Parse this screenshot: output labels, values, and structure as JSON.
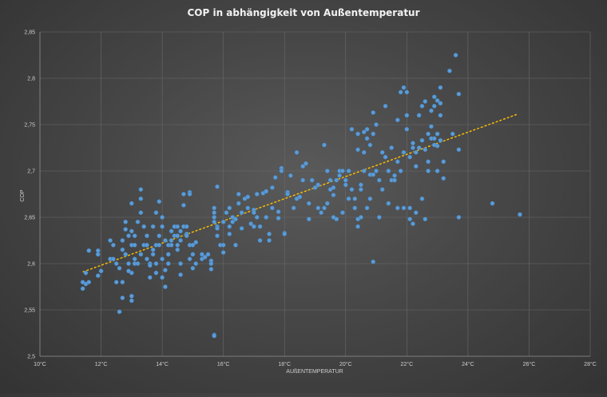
{
  "chart_data": {
    "type": "scatter",
    "title": "COP in abhängigkeit von Außentemperatur",
    "xlabel": "AUßENTEMPERATUR",
    "ylabel": "COP",
    "xlim": [
      10,
      28
    ],
    "ylim": [
      2.5,
      2.85
    ],
    "x_ticks": [
      10,
      12,
      14,
      16,
      18,
      20,
      22,
      24,
      26,
      28
    ],
    "x_tick_labels": [
      "10°C",
      "12°C",
      "14°C",
      "16°C",
      "18°C",
      "20°C",
      "22°C",
      "24°C",
      "26°C",
      "28°C"
    ],
    "y_ticks": [
      2.5,
      2.55,
      2.6,
      2.65,
      2.7,
      2.75,
      2.8,
      2.85
    ],
    "y_tick_labels": [
      "2,5",
      "2,55",
      "2,6",
      "2,65",
      "2,7",
      "2,75",
      "2,8",
      "2,85"
    ],
    "grid": true,
    "legend": "none",
    "colors": {
      "points": "#5b9bd5",
      "trendline": "#ffc000"
    },
    "trendline": {
      "type": "linear",
      "x": [
        11.4,
        25.6
      ],
      "y": [
        2.591,
        2.761
      ]
    },
    "series": [
      {
        "points": [
          [
            11.4,
            2.58
          ],
          [
            11.4,
            2.573
          ],
          [
            11.5,
            2.578
          ],
          [
            11.6,
            2.58
          ],
          [
            11.6,
            2.614
          ],
          [
            11.5,
            2.59
          ],
          [
            11.9,
            2.587
          ],
          [
            12.0,
            2.592
          ],
          [
            11.9,
            2.61
          ],
          [
            11.9,
            2.614
          ],
          [
            12.3,
            2.605
          ],
          [
            12.3,
            2.625
          ],
          [
            12.4,
            2.605
          ],
          [
            12.4,
            2.62
          ],
          [
            12.5,
            2.6
          ],
          [
            12.5,
            2.58
          ],
          [
            12.6,
            2.595
          ],
          [
            12.6,
            2.548
          ],
          [
            12.7,
            2.563
          ],
          [
            12.7,
            2.58
          ],
          [
            12.7,
            2.615
          ],
          [
            12.7,
            2.625
          ],
          [
            12.8,
            2.645
          ],
          [
            12.8,
            2.637
          ],
          [
            12.8,
            2.61
          ],
          [
            12.9,
            2.63
          ],
          [
            12.9,
            2.6
          ],
          [
            12.9,
            2.592
          ],
          [
            13.0,
            2.62
          ],
          [
            13.0,
            2.635
          ],
          [
            13.0,
            2.56
          ],
          [
            13.0,
            2.565
          ],
          [
            13.0,
            2.59
          ],
          [
            13.0,
            2.665
          ],
          [
            13.1,
            2.605
          ],
          [
            13.1,
            2.62
          ],
          [
            13.1,
            2.6
          ],
          [
            13.1,
            2.63
          ],
          [
            13.2,
            2.645
          ],
          [
            13.2,
            2.6
          ],
          [
            13.3,
            2.655
          ],
          [
            13.3,
            2.67
          ],
          [
            13.3,
            2.68
          ],
          [
            13.3,
            2.61
          ],
          [
            13.4,
            2.62
          ],
          [
            13.4,
            2.64
          ],
          [
            13.5,
            2.62
          ],
          [
            13.5,
            2.63
          ],
          [
            13.5,
            2.605
          ],
          [
            13.6,
            2.585
          ],
          [
            13.6,
            2.6
          ],
          [
            13.6,
            2.598
          ],
          [
            13.7,
            2.64
          ],
          [
            13.7,
            2.615
          ],
          [
            13.7,
            2.61
          ],
          [
            13.8,
            2.62
          ],
          [
            13.8,
            2.655
          ],
          [
            13.8,
            2.6
          ],
          [
            13.8,
            2.59
          ],
          [
            13.9,
            2.667
          ],
          [
            13.9,
            2.62
          ],
          [
            13.9,
            2.63
          ],
          [
            14.0,
            2.585
          ],
          [
            14.0,
            2.64
          ],
          [
            14.0,
            2.65
          ],
          [
            14.0,
            2.605
          ],
          [
            14.1,
            2.625
          ],
          [
            14.1,
            2.593
          ],
          [
            14.1,
            2.575
          ],
          [
            14.2,
            2.61
          ],
          [
            14.2,
            2.62
          ],
          [
            14.2,
            2.6
          ],
          [
            14.3,
            2.625
          ],
          [
            14.3,
            2.635
          ],
          [
            14.3,
            2.62
          ],
          [
            14.4,
            2.63
          ],
          [
            14.4,
            2.64
          ],
          [
            14.5,
            2.63
          ],
          [
            14.5,
            2.64
          ],
          [
            14.5,
            2.62
          ],
          [
            14.5,
            2.615
          ],
          [
            14.6,
            2.6
          ],
          [
            14.6,
            2.635
          ],
          [
            14.6,
            2.588
          ],
          [
            14.6,
            2.625
          ],
          [
            14.7,
            2.64
          ],
          [
            14.7,
            2.675
          ],
          [
            14.7,
            2.663
          ],
          [
            14.8,
            2.64
          ],
          [
            14.8,
            2.632
          ],
          [
            14.8,
            2.63
          ],
          [
            14.9,
            2.677
          ],
          [
            14.9,
            2.675
          ],
          [
            14.9,
            2.62
          ],
          [
            14.9,
            2.605
          ],
          [
            15.0,
            2.595
          ],
          [
            15.0,
            2.61
          ],
          [
            15.0,
            2.62
          ],
          [
            15.1,
            2.6
          ],
          [
            15.1,
            2.623
          ],
          [
            15.3,
            2.61
          ],
          [
            15.3,
            2.605
          ],
          [
            15.4,
            2.607
          ],
          [
            15.5,
            2.61
          ],
          [
            15.6,
            2.603
          ],
          [
            15.6,
            2.6
          ],
          [
            15.6,
            2.594
          ],
          [
            15.7,
            2.523
          ],
          [
            15.7,
            2.522
          ],
          [
            15.7,
            2.65
          ],
          [
            15.7,
            2.655
          ],
          [
            15.7,
            2.645
          ],
          [
            15.7,
            2.66
          ],
          [
            15.8,
            2.683
          ],
          [
            15.8,
            2.64
          ],
          [
            15.8,
            2.638
          ],
          [
            15.8,
            2.63
          ],
          [
            15.9,
            2.62
          ],
          [
            16.0,
            2.62
          ],
          [
            16.0,
            2.612
          ],
          [
            16.0,
            2.645
          ],
          [
            16.1,
            2.655
          ],
          [
            16.2,
            2.632
          ],
          [
            16.2,
            2.64
          ],
          [
            16.2,
            2.66
          ],
          [
            16.3,
            2.65
          ],
          [
            16.3,
            2.645
          ],
          [
            16.4,
            2.648
          ],
          [
            16.4,
            2.62
          ],
          [
            16.5,
            2.665
          ],
          [
            16.5,
            2.675
          ],
          [
            16.6,
            2.655
          ],
          [
            16.6,
            2.638
          ],
          [
            16.7,
            2.67
          ],
          [
            16.8,
            2.672
          ],
          [
            16.8,
            2.66
          ],
          [
            16.9,
            2.643
          ],
          [
            17.0,
            2.658
          ],
          [
            17.0,
            2.655
          ],
          [
            17.0,
            2.64
          ],
          [
            17.1,
            2.675
          ],
          [
            17.1,
            2.65
          ],
          [
            17.2,
            2.64
          ],
          [
            17.2,
            2.625
          ],
          [
            17.3,
            2.676
          ],
          [
            17.4,
            2.678
          ],
          [
            17.4,
            2.65
          ],
          [
            17.5,
            2.632
          ],
          [
            17.5,
            2.625
          ],
          [
            17.6,
            2.682
          ],
          [
            17.6,
            2.66
          ],
          [
            17.7,
            2.693
          ],
          [
            17.8,
            2.656
          ],
          [
            17.8,
            2.649
          ],
          [
            17.9,
            2.703
          ],
          [
            17.9,
            2.7
          ],
          [
            18.0,
            2.633
          ],
          [
            18.0,
            2.632
          ],
          [
            18.1,
            2.677
          ],
          [
            18.1,
            2.675
          ],
          [
            18.2,
            2.695
          ],
          [
            18.3,
            2.66
          ],
          [
            18.4,
            2.67
          ],
          [
            18.4,
            2.72
          ],
          [
            18.5,
            2.672
          ],
          [
            18.6,
            2.69
          ],
          [
            18.6,
            2.705
          ],
          [
            18.7,
            2.708
          ],
          [
            18.8,
            2.648
          ],
          [
            18.8,
            2.665
          ],
          [
            18.9,
            2.69
          ],
          [
            19.0,
            2.682
          ],
          [
            19.1,
            2.685
          ],
          [
            19.1,
            2.66
          ],
          [
            19.2,
            2.655
          ],
          [
            19.3,
            2.66
          ],
          [
            19.3,
            2.728
          ],
          [
            19.4,
            2.7
          ],
          [
            19.4,
            2.665
          ],
          [
            19.5,
            2.68
          ],
          [
            19.5,
            2.69
          ],
          [
            19.6,
            2.682
          ],
          [
            19.6,
            2.674
          ],
          [
            19.6,
            2.65
          ],
          [
            19.7,
            2.69
          ],
          [
            19.7,
            2.648
          ],
          [
            19.8,
            2.7
          ],
          [
            19.8,
            2.695
          ],
          [
            19.9,
            2.7
          ],
          [
            19.9,
            2.655
          ],
          [
            20.0,
            2.685
          ],
          [
            20.0,
            2.69
          ],
          [
            20.1,
            2.67
          ],
          [
            20.1,
            2.7
          ],
          [
            20.2,
            2.745
          ],
          [
            20.2,
            2.68
          ],
          [
            20.3,
            2.67
          ],
          [
            20.3,
            2.66
          ],
          [
            20.4,
            2.74
          ],
          [
            20.4,
            2.723
          ],
          [
            20.4,
            2.648
          ],
          [
            20.4,
            2.64
          ],
          [
            20.5,
            2.65
          ],
          [
            20.5,
            2.68
          ],
          [
            20.5,
            2.685
          ],
          [
            20.6,
            2.742
          ],
          [
            20.6,
            2.72
          ],
          [
            20.6,
            2.7
          ],
          [
            20.7,
            2.66
          ],
          [
            20.7,
            2.745
          ],
          [
            20.7,
            2.735
          ],
          [
            20.8,
            2.728
          ],
          [
            20.8,
            2.696
          ],
          [
            20.8,
            2.67
          ],
          [
            20.9,
            2.74
          ],
          [
            20.9,
            2.763
          ],
          [
            20.9,
            2.696
          ],
          [
            20.9,
            2.602
          ],
          [
            21.0,
            2.75
          ],
          [
            21.0,
            2.7
          ],
          [
            21.1,
            2.69
          ],
          [
            21.1,
            2.65
          ],
          [
            21.2,
            2.72
          ],
          [
            21.2,
            2.68
          ],
          [
            21.3,
            2.77
          ],
          [
            21.3,
            2.715
          ],
          [
            21.4,
            2.7
          ],
          [
            21.4,
            2.665
          ],
          [
            21.5,
            2.725
          ],
          [
            21.5,
            2.69
          ],
          [
            21.6,
            2.695
          ],
          [
            21.6,
            2.69
          ],
          [
            21.7,
            2.755
          ],
          [
            21.7,
            2.71
          ],
          [
            21.7,
            2.66
          ],
          [
            21.8,
            2.785
          ],
          [
            21.8,
            2.7
          ],
          [
            21.9,
            2.79
          ],
          [
            21.9,
            2.72
          ],
          [
            21.9,
            2.66
          ],
          [
            22.0,
            2.785
          ],
          [
            22.0,
            2.76
          ],
          [
            22.0,
            2.745
          ],
          [
            22.1,
            2.648
          ],
          [
            22.1,
            2.715
          ],
          [
            22.1,
            2.66
          ],
          [
            22.2,
            2.725
          ],
          [
            22.2,
            2.73
          ],
          [
            22.2,
            2.643
          ],
          [
            22.3,
            2.72
          ],
          [
            22.3,
            2.705
          ],
          [
            22.3,
            2.655
          ],
          [
            22.4,
            2.76
          ],
          [
            22.4,
            2.725
          ],
          [
            22.5,
            2.77
          ],
          [
            22.5,
            2.733
          ],
          [
            22.5,
            2.67
          ],
          [
            22.6,
            2.775
          ],
          [
            22.6,
            2.723
          ],
          [
            22.6,
            2.648
          ],
          [
            22.7,
            2.74
          ],
          [
            22.7,
            2.71
          ],
          [
            22.7,
            2.7
          ],
          [
            22.8,
            2.765
          ],
          [
            22.8,
            2.748
          ],
          [
            22.8,
            2.735
          ],
          [
            22.9,
            2.78
          ],
          [
            22.9,
            2.77
          ],
          [
            22.9,
            2.735
          ],
          [
            22.9,
            2.728
          ],
          [
            23.0,
            2.776
          ],
          [
            23.0,
            2.74
          ],
          [
            23.0,
            2.727
          ],
          [
            23.0,
            2.7
          ],
          [
            23.1,
            2.79
          ],
          [
            23.1,
            2.773
          ],
          [
            23.1,
            2.76
          ],
          [
            23.1,
            2.733
          ],
          [
            23.2,
            2.71
          ],
          [
            23.2,
            2.692
          ],
          [
            23.4,
            2.808
          ],
          [
            23.5,
            2.74
          ],
          [
            23.6,
            2.825
          ],
          [
            23.7,
            2.783
          ],
          [
            23.7,
            2.723
          ],
          [
            23.7,
            2.65
          ],
          [
            24.8,
            2.665
          ],
          [
            25.7,
            2.653
          ]
        ]
      }
    ]
  }
}
